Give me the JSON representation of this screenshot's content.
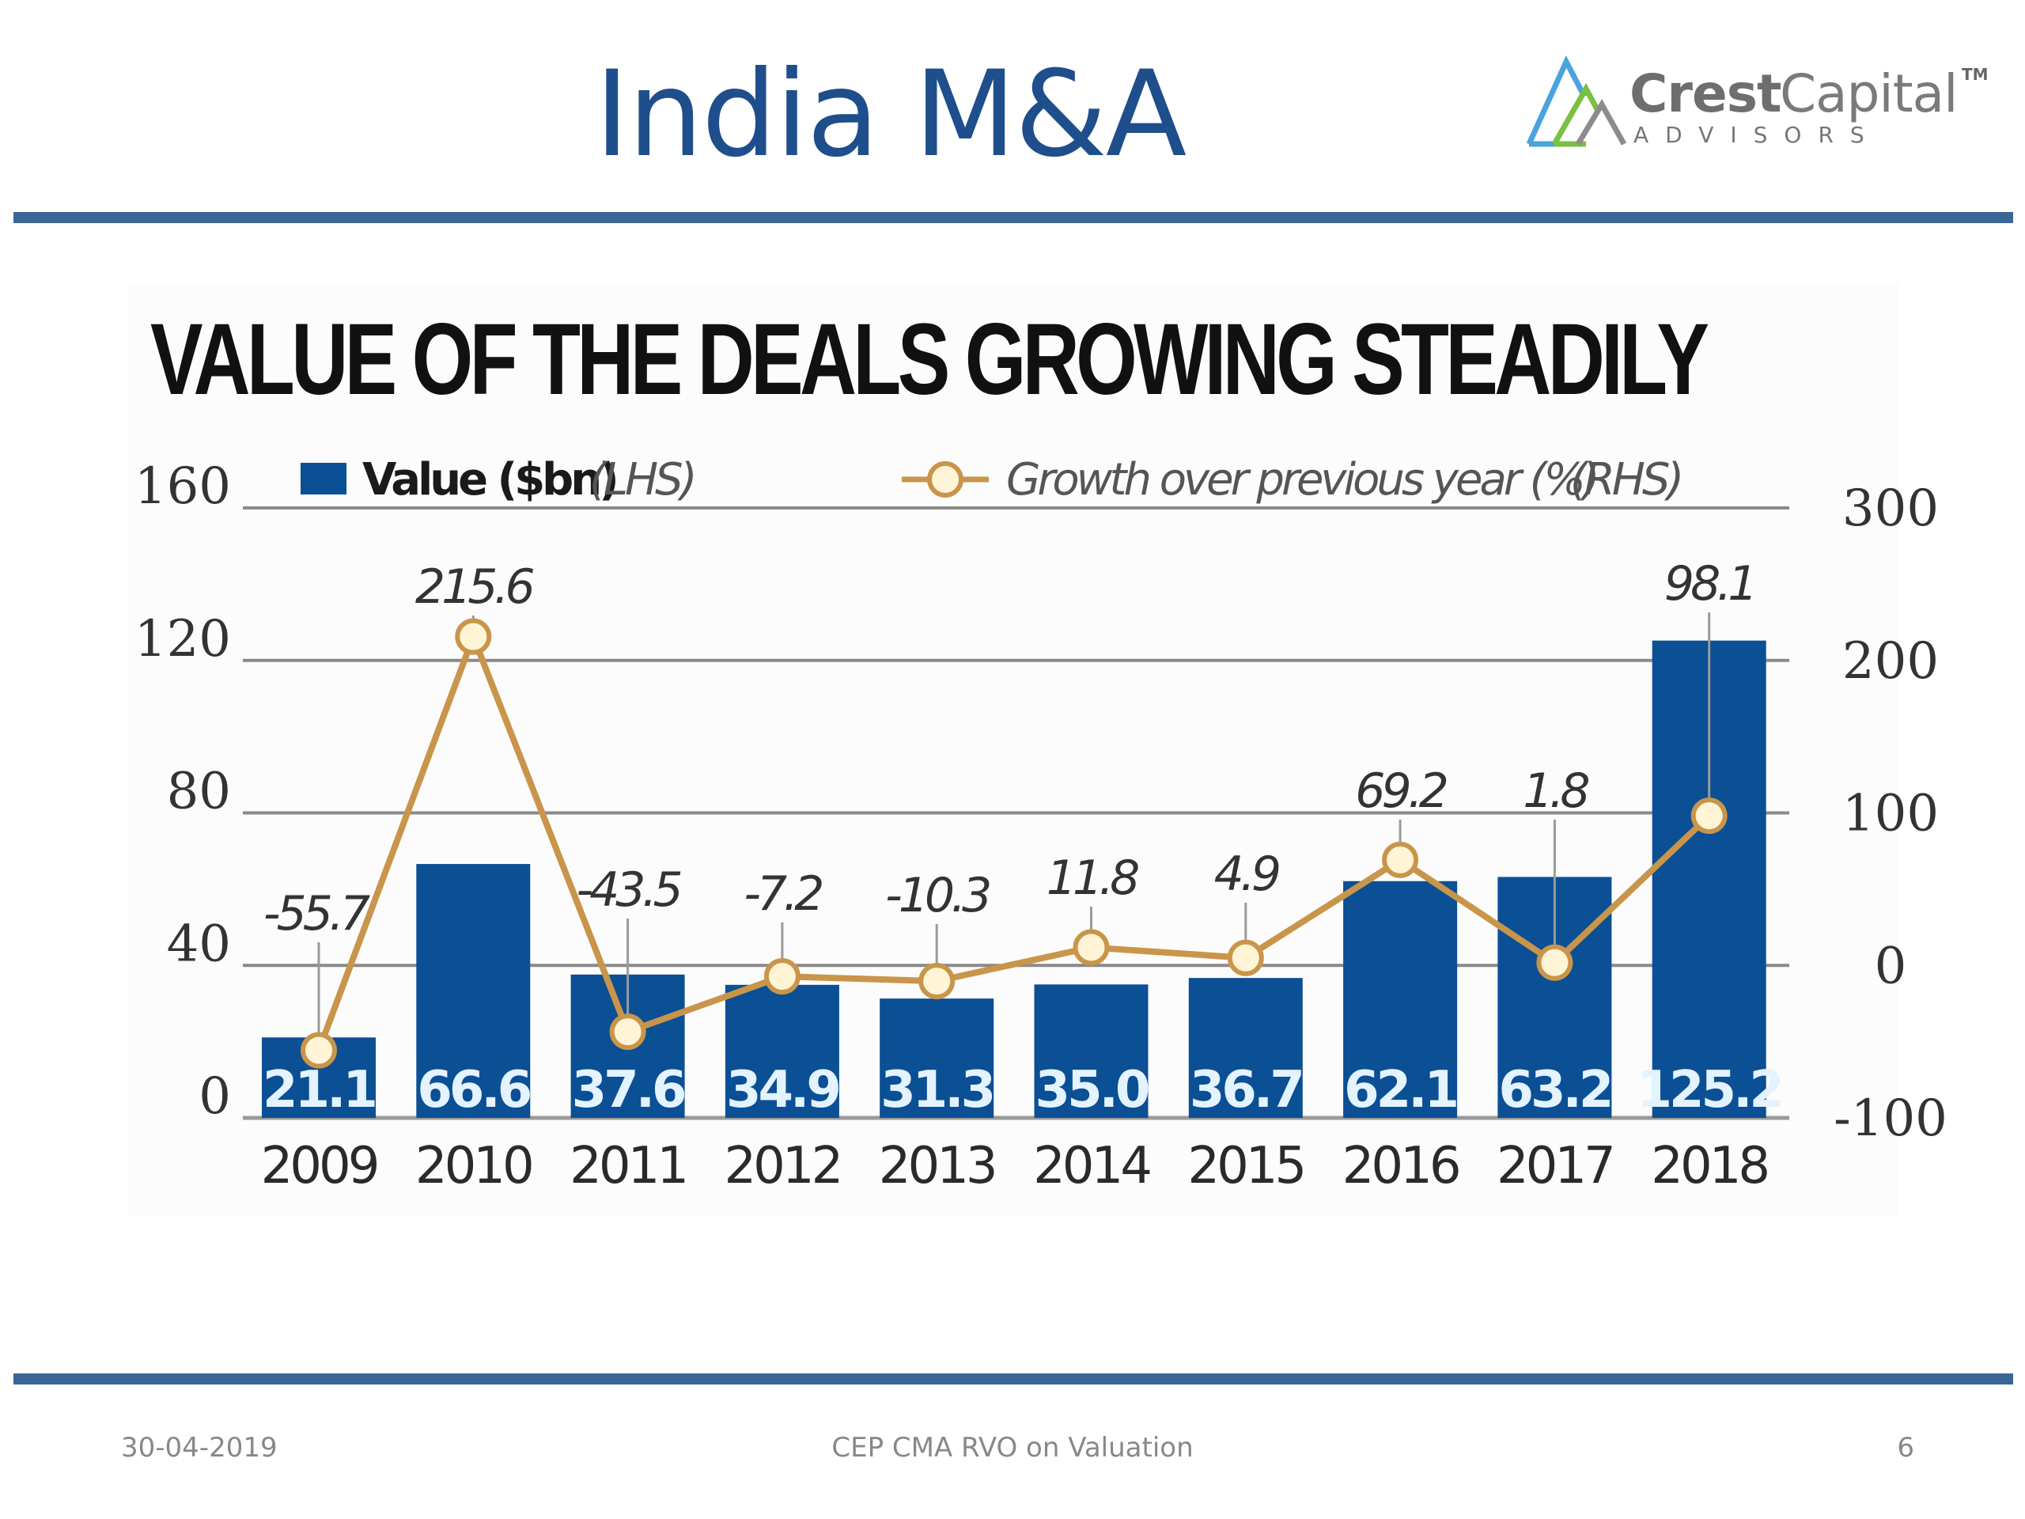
{
  "slide": {
    "title": "India M&A",
    "logo": {
      "word1": "Crest",
      "word2": "Capital",
      "tm": "TM",
      "tagline": "ADVISORS"
    },
    "footer": {
      "date": "30-04-2019",
      "center": "CEP CMA RVO on Valuation",
      "page": "6"
    },
    "colors": {
      "title": "#1f4e8c",
      "rule": "#3b6497",
      "bar": "#0b4f95",
      "line": "#c9954a",
      "marker_fill": "#fff4d6"
    }
  },
  "chart_data": {
    "type": "bar",
    "title": "VALUE OF THE DEALS GROWING STEADILY",
    "categories": [
      "2009",
      "2010",
      "2011",
      "2012",
      "2013",
      "2014",
      "2015",
      "2016",
      "2017",
      "2018"
    ],
    "series": [
      {
        "name": "Value ($bn)",
        "axis_note": "(LHS)",
        "type": "bar",
        "axis": "left",
        "values": [
          21.1,
          66.6,
          37.6,
          34.9,
          31.3,
          35.0,
          36.7,
          62.1,
          63.2,
          125.2
        ],
        "labels": [
          "21.1",
          "66.6",
          "37.6",
          "34.9",
          "31.3",
          "35.0",
          "36.7",
          "62.1",
          "63.2",
          "125.2"
        ]
      },
      {
        "name": "Growth over previous year (%)",
        "axis_note": "(RHS)",
        "type": "line",
        "axis": "right",
        "values": [
          -55.7,
          215.6,
          -43.5,
          -7.2,
          -10.3,
          11.8,
          4.9,
          69.2,
          1.8,
          98.1
        ],
        "labels": [
          "-55.7",
          "215.6",
          "-43.5",
          "-7.2",
          "-10.3",
          "11.8",
          "4.9",
          "69.2",
          "1.8",
          "98.1"
        ]
      }
    ],
    "left_axis": {
      "ylim": [
        0,
        160
      ],
      "ticks": [
        "0",
        "40",
        "80",
        "120",
        "160"
      ]
    },
    "right_axis": {
      "ylim": [
        -100,
        300
      ],
      "ticks": [
        "-100",
        "0",
        "100",
        "200",
        "300"
      ]
    },
    "grid": true,
    "legend": "top",
    "xlabel": "",
    "ylabel": ""
  }
}
